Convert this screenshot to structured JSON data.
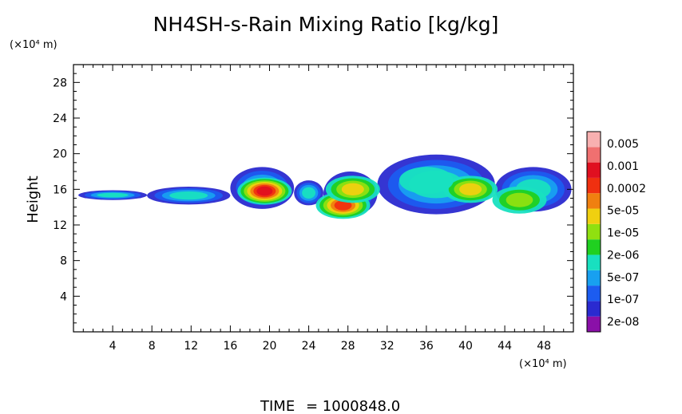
{
  "chart_data": {
    "type": "heatmap",
    "title": "NH4SH-s-Rain Mixing Ratio [kg/kg]",
    "ylabel": "Height",
    "y_unit": "(×10⁴ m)",
    "x_unit": "(×10⁴ m)",
    "time_label": "TIME",
    "time_value": "= 1000848.0",
    "xlim": [
      0,
      51
    ],
    "ylim": [
      0,
      30
    ],
    "x_ticks": [
      "4",
      "8",
      "12",
      "16",
      "20",
      "24",
      "28",
      "32",
      "36",
      "40",
      "44",
      "48"
    ],
    "y_ticks": [
      "4",
      "8",
      "12",
      "16",
      "20",
      "24",
      "28"
    ],
    "colorbar": {
      "labels": [
        "2e-08",
        "1e-07",
        "5e-07",
        "2e-06",
        "1e-05",
        "5e-05",
        "0.0002",
        "0.001",
        "0.005"
      ],
      "colors": [
        "#8a10a8",
        "#2a2ad0",
        "#1c5cf0",
        "#18a0f0",
        "#18e0c0",
        "#20d020",
        "#90e010",
        "#f0d010",
        "#f08010",
        "#f03010",
        "#e01020",
        "#f07070",
        "#f8b0b0"
      ]
    },
    "cloud_bands": [
      {
        "x": [
          0.5,
          7.5
        ],
        "y_bottom": 14.8,
        "y_top": 15.9
      },
      {
        "x": [
          7.5,
          16
        ],
        "y_bottom": 14.3,
        "y_top": 16.3
      },
      {
        "x": [
          16,
          22.5
        ],
        "y_bottom": 13.8,
        "y_top": 18.5
      },
      {
        "x": [
          22.5,
          25.5
        ],
        "y_bottom": 14.2,
        "y_top": 17.0
      },
      {
        "x": [
          25.5,
          31
        ],
        "y_bottom": 13.0,
        "y_top": 18.0
      },
      {
        "x": [
          31,
          43
        ],
        "y_bottom": 13.2,
        "y_top": 19.9
      },
      {
        "x": [
          43,
          50.8
        ],
        "y_bottom": 13.5,
        "y_top": 18.5
      }
    ],
    "cores": [
      {
        "x": 19.5,
        "y": 15.8,
        "level": 10
      },
      {
        "x": 27.5,
        "y": 14.2,
        "level": 9
      },
      {
        "x": 28.5,
        "y": 16.0,
        "level": 7
      },
      {
        "x": 40.5,
        "y": 16.0,
        "level": 7
      },
      {
        "x": 45.5,
        "y": 14.8,
        "level": 6
      },
      {
        "x": 36,
        "y": 17.0,
        "level": 4
      }
    ]
  }
}
